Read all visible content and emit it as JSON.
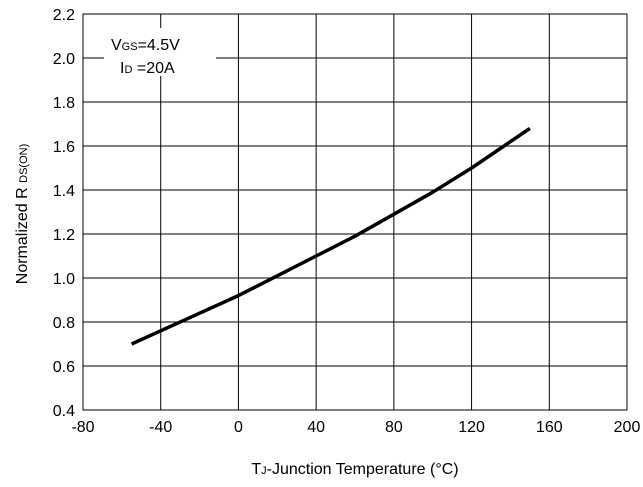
{
  "chart_data": {
    "type": "line",
    "xlabel": {
      "main": "T",
      "sub": "J",
      "rest": "-Junction Temperature (°C)"
    },
    "ylabel": {
      "main": "Normalized R ",
      "sub": "DS(ON)"
    },
    "xlim": [
      -80,
      200
    ],
    "ylim": [
      0.4,
      2.2
    ],
    "x_ticks": [
      "-80",
      "-40",
      "0",
      "40",
      "80",
      "120",
      "160",
      "200"
    ],
    "x_tick_values": [
      -80,
      -40,
      0,
      40,
      80,
      120,
      160,
      200
    ],
    "y_ticks": [
      "0.4",
      "0.6",
      "0.8",
      "1.0",
      "1.2",
      "1.4",
      "1.6",
      "1.8",
      "2.0",
      "2.2"
    ],
    "y_tick_values": [
      0.4,
      0.6,
      0.8,
      1.0,
      1.2,
      1.4,
      1.6,
      1.8,
      2.0,
      2.2
    ],
    "grid": true,
    "legend": {
      "position": "top-left",
      "lines": [
        {
          "main": "V",
          "sub": "GS",
          "rest": "=4.5V"
        },
        {
          "main": "I",
          "sub": "D",
          "rest": " =20A"
        }
      ]
    },
    "series": [
      {
        "color": "#000000",
        "x": [
          -55,
          -40,
          -20,
          0,
          20,
          40,
          60,
          80,
          100,
          120,
          150
        ],
        "y": [
          0.7,
          0.76,
          0.84,
          0.92,
          1.01,
          1.1,
          1.19,
          1.29,
          1.39,
          1.5,
          1.68
        ]
      }
    ]
  }
}
